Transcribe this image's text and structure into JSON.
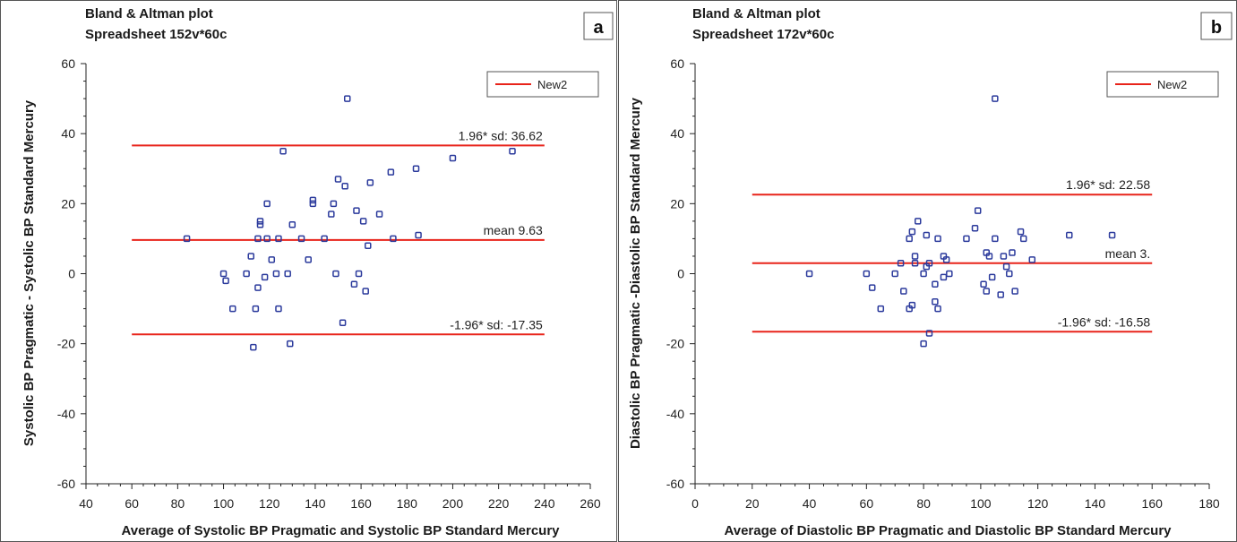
{
  "colors": {
    "reference_line": "#e8231a",
    "marker": "#2b3a9c",
    "axis": "#222222"
  },
  "chart_data": [
    {
      "type": "scatter",
      "panel_label": "a",
      "title": "Bland & Altman plot",
      "subtitle": "Spreadsheet 152v*60c",
      "xlabel": "Average of Systolic BP Pragmatic and Systolic BP Standard Mercury",
      "ylabel": "Systolic BP Pragmatic - Systolic BP Standard Mercury",
      "xlim": [
        40,
        260
      ],
      "ylim": [
        -60,
        60
      ],
      "x_ticks": [
        40,
        60,
        80,
        100,
        120,
        140,
        160,
        180,
        200,
        220,
        240,
        260
      ],
      "y_ticks": [
        -60,
        -40,
        -20,
        0,
        20,
        40,
        60
      ],
      "legend": {
        "label": "New2",
        "placement": "top-right"
      },
      "ref_line_x_range": [
        60,
        240
      ],
      "reference_lines": [
        {
          "y": 36.62,
          "label": "1.96* sd: 36.62"
        },
        {
          "y": 9.63,
          "label": "mean 9.63"
        },
        {
          "y": -17.35,
          "label": "-1.96* sd: -17.35"
        }
      ],
      "points": [
        [
          84,
          10
        ],
        [
          100,
          0
        ],
        [
          101,
          -2
        ],
        [
          104,
          -10
        ],
        [
          110,
          0
        ],
        [
          112,
          5
        ],
        [
          113,
          -21
        ],
        [
          114,
          -10
        ],
        [
          115,
          10
        ],
        [
          115,
          -4
        ],
        [
          116,
          14
        ],
        [
          116,
          15
        ],
        [
          118,
          -1
        ],
        [
          119,
          20
        ],
        [
          119,
          10
        ],
        [
          121,
          4
        ],
        [
          123,
          0
        ],
        [
          124,
          10
        ],
        [
          124,
          -10
        ],
        [
          126,
          35
        ],
        [
          128,
          0
        ],
        [
          129,
          -20
        ],
        [
          130,
          14
        ],
        [
          134,
          10
        ],
        [
          137,
          4
        ],
        [
          139,
          20
        ],
        [
          139,
          21
        ],
        [
          144,
          10
        ],
        [
          147,
          17
        ],
        [
          148,
          20
        ],
        [
          149,
          0
        ],
        [
          150,
          27
        ],
        [
          152,
          -14
        ],
        [
          153,
          25
        ],
        [
          154,
          50
        ],
        [
          157,
          -3
        ],
        [
          158,
          18
        ],
        [
          159,
          0
        ],
        [
          161,
          15
        ],
        [
          162,
          -5
        ],
        [
          163,
          8
        ],
        [
          164,
          26
        ],
        [
          168,
          17
        ],
        [
          173,
          29
        ],
        [
          174,
          10
        ],
        [
          184,
          30
        ],
        [
          185,
          11
        ],
        [
          200,
          33
        ],
        [
          226,
          35
        ]
      ]
    },
    {
      "type": "scatter",
      "panel_label": "b",
      "title": "Bland & Altman plot",
      "subtitle": "Spreadsheet 172v*60c",
      "xlabel": "Average of Diastolic BP Pragmatic and Diastolic BP Standard Mercury",
      "ylabel": "Diastolic BP Pragmatic -Diastolic BP Standard Mercury",
      "xlim": [
        0,
        180
      ],
      "ylim": [
        -60,
        60
      ],
      "x_ticks": [
        0,
        20,
        40,
        60,
        80,
        100,
        120,
        140,
        160,
        180
      ],
      "y_ticks": [
        -60,
        -40,
        -20,
        0,
        20,
        40,
        60
      ],
      "legend": {
        "label": "New2",
        "placement": "top-right"
      },
      "ref_line_x_range": [
        20,
        160
      ],
      "reference_lines": [
        {
          "y": 22.58,
          "label": "1.96* sd: 22.58"
        },
        {
          "y": 3.0,
          "label": "mean 3."
        },
        {
          "y": -16.58,
          "label": "-1.96* sd: -16.58"
        }
      ],
      "points": [
        [
          40,
          0
        ],
        [
          60,
          0
        ],
        [
          62,
          -4
        ],
        [
          65,
          -10
        ],
        [
          70,
          0
        ],
        [
          72,
          3
        ],
        [
          73,
          -5
        ],
        [
          75,
          10
        ],
        [
          75,
          -10
        ],
        [
          76,
          12
        ],
        [
          76,
          -9
        ],
        [
          77,
          3
        ],
        [
          77,
          5
        ],
        [
          78,
          15
        ],
        [
          80,
          -20
        ],
        [
          80,
          0
        ],
        [
          81,
          11
        ],
        [
          81,
          2
        ],
        [
          82,
          3
        ],
        [
          82,
          -17
        ],
        [
          84,
          -3
        ],
        [
          84,
          -8
        ],
        [
          85,
          10
        ],
        [
          85,
          -10
        ],
        [
          87,
          5
        ],
        [
          87,
          -1
        ],
        [
          88,
          4
        ],
        [
          89,
          0
        ],
        [
          95,
          10
        ],
        [
          98,
          13
        ],
        [
          99,
          18
        ],
        [
          101,
          -3
        ],
        [
          102,
          6
        ],
        [
          102,
          -5
        ],
        [
          103,
          5
        ],
        [
          104,
          -1
        ],
        [
          105,
          10
        ],
        [
          105,
          50
        ],
        [
          107,
          -6
        ],
        [
          108,
          5
        ],
        [
          109,
          2
        ],
        [
          110,
          0
        ],
        [
          111,
          6
        ],
        [
          112,
          -5
        ],
        [
          114,
          12
        ],
        [
          115,
          10
        ],
        [
          118,
          4
        ],
        [
          131,
          11
        ],
        [
          146,
          11
        ]
      ]
    }
  ]
}
